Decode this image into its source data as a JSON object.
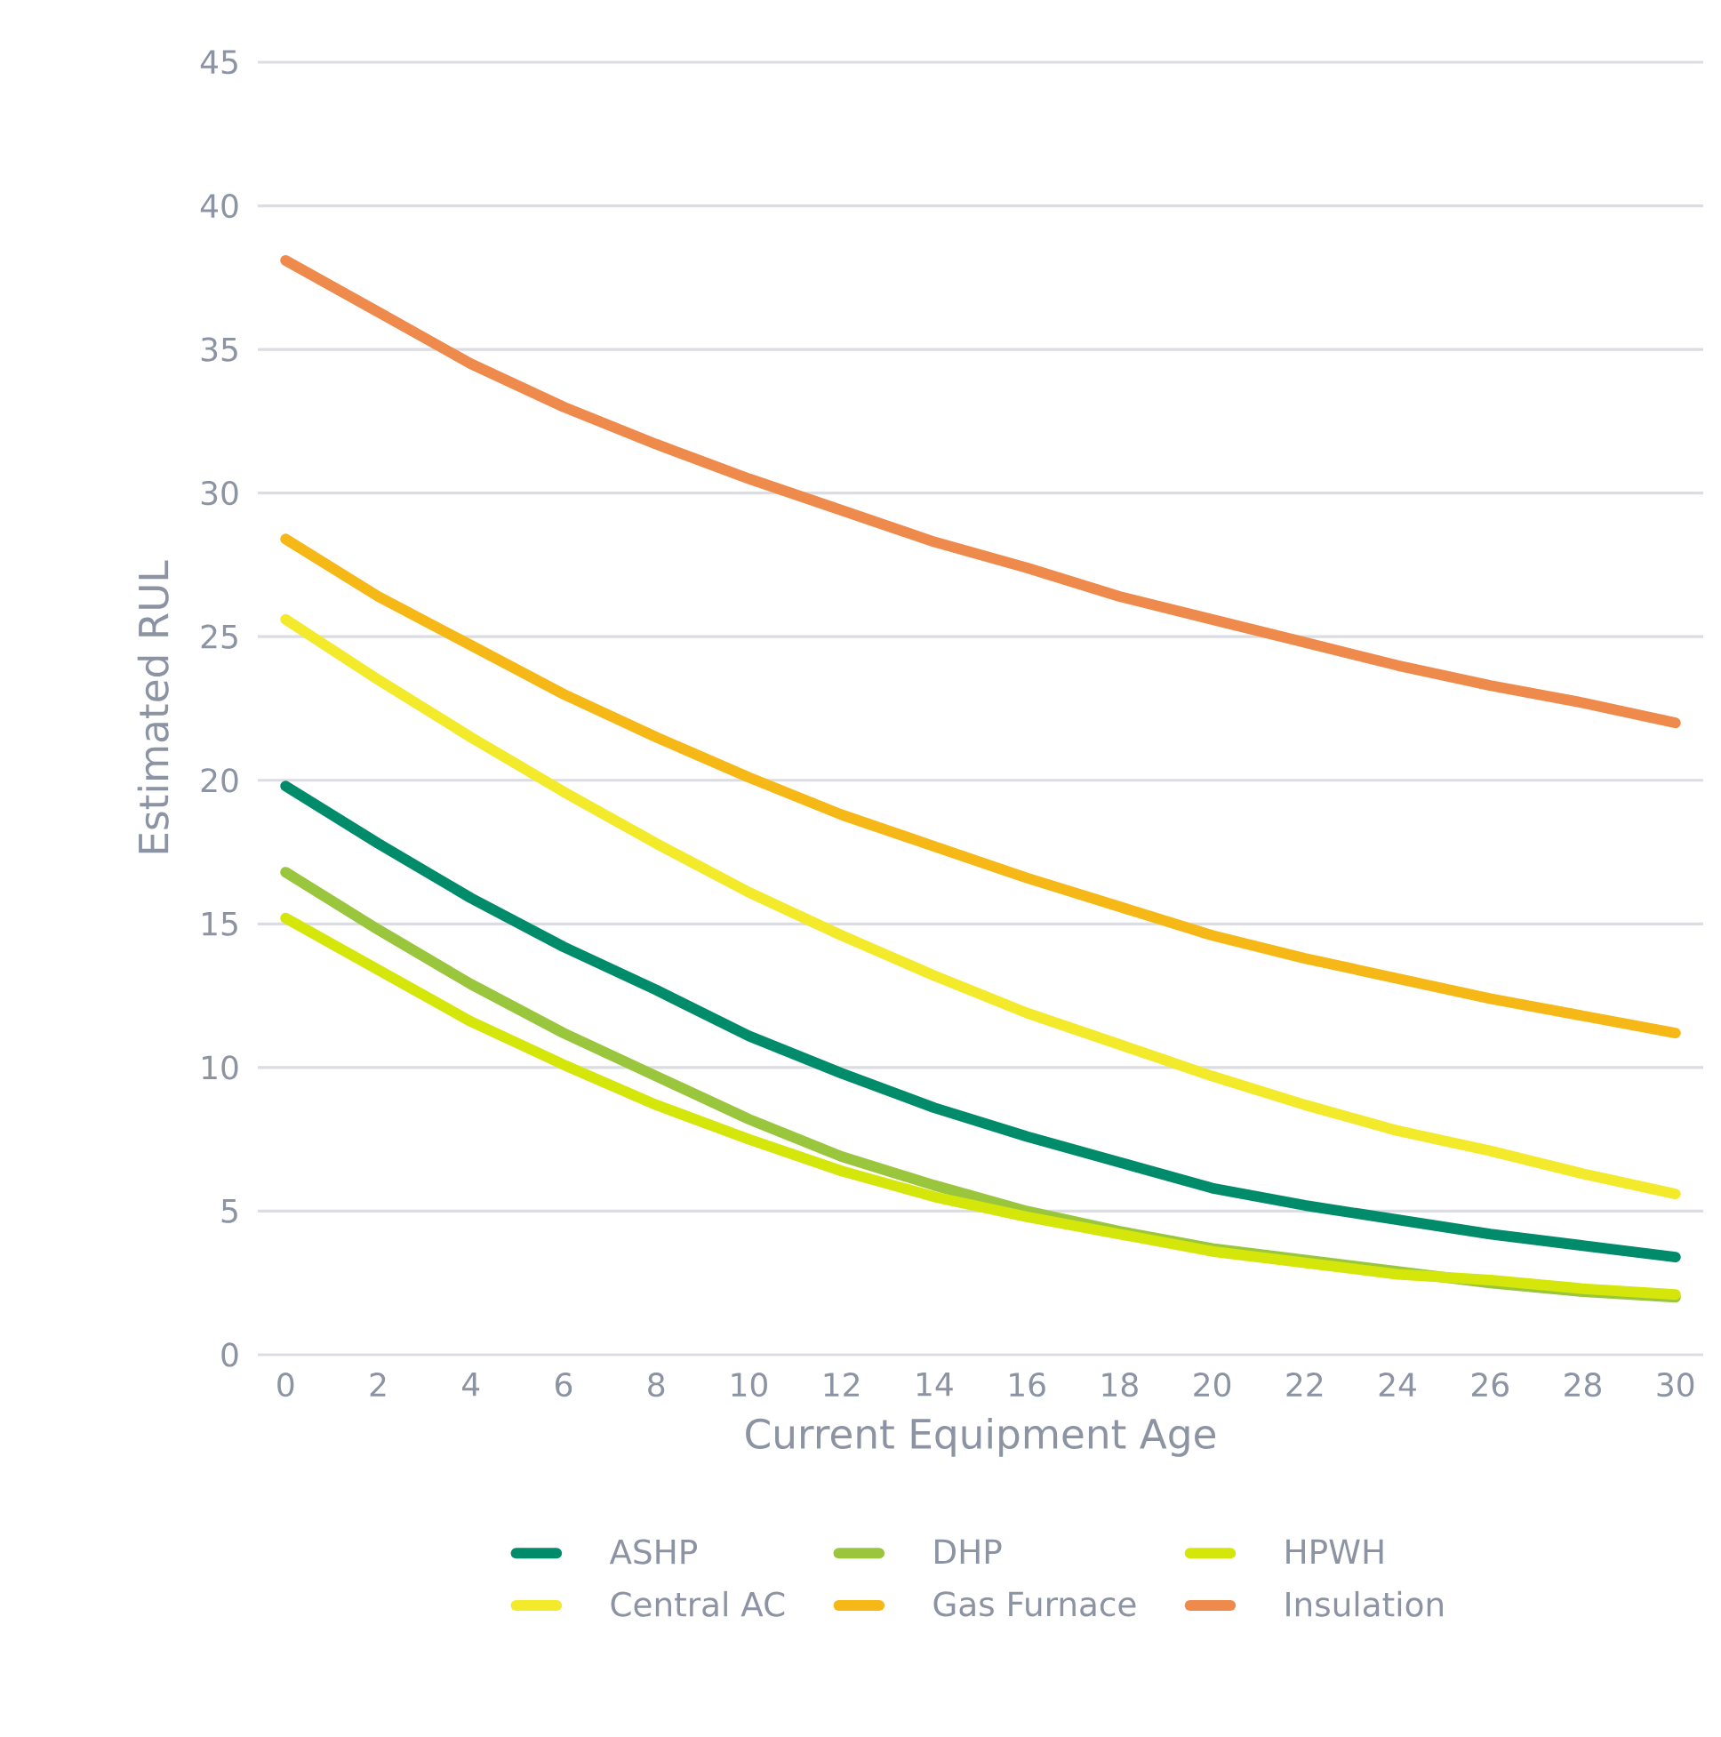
{
  "chart_data": {
    "type": "line",
    "xlabel": "Current Equipment Age",
    "ylabel": "Estimated RUL",
    "x": [
      0,
      2,
      4,
      6,
      8,
      10,
      12,
      14,
      16,
      18,
      20,
      22,
      24,
      26,
      28,
      30
    ],
    "xlim": [
      -0.6,
      30.6
    ],
    "xticks": [
      0,
      2,
      4,
      6,
      8,
      10,
      12,
      14,
      16,
      18,
      20,
      22,
      24,
      26,
      28,
      30
    ],
    "ylim": [
      0,
      45
    ],
    "yticks": [
      0,
      5,
      10,
      15,
      20,
      25,
      30,
      35,
      40,
      45
    ],
    "grid": "y",
    "legend": "bottom",
    "marker": "none",
    "line_style": "solid",
    "series": [
      {
        "name": "ASHP",
        "color": "#008c6a",
        "values": [
          19.8,
          17.8,
          15.9,
          14.2,
          12.7,
          11.1,
          9.8,
          8.6,
          7.6,
          6.7,
          5.8,
          5.2,
          4.7,
          4.2,
          3.8,
          3.4
        ]
      },
      {
        "name": "DHP",
        "color": "#99c63c",
        "values": [
          16.8,
          14.8,
          12.9,
          11.2,
          9.7,
          8.2,
          6.9,
          5.9,
          5.0,
          4.3,
          3.7,
          3.3,
          2.9,
          2.5,
          2.2,
          2.0
        ]
      },
      {
        "name": "HPWH",
        "color": "#d4e60a",
        "values": [
          15.2,
          13.4,
          11.6,
          10.1,
          8.7,
          7.5,
          6.4,
          5.5,
          4.8,
          4.2,
          3.6,
          3.2,
          2.8,
          2.6,
          2.3,
          2.1
        ]
      },
      {
        "name": "Central AC",
        "color": "#f2ea2a",
        "values": [
          25.6,
          23.5,
          21.5,
          19.6,
          17.8,
          16.1,
          14.6,
          13.2,
          11.9,
          10.8,
          9.7,
          8.7,
          7.8,
          7.1,
          6.3,
          5.6
        ]
      },
      {
        "name": "Gas Furnace",
        "color": "#f5b816",
        "values": [
          28.4,
          26.4,
          24.7,
          23.0,
          21.5,
          20.1,
          18.8,
          17.7,
          16.6,
          15.6,
          14.6,
          13.8,
          13.1,
          12.4,
          11.8,
          11.2
        ]
      },
      {
        "name": "Insulation",
        "color": "#ee8a4c",
        "values": [
          38.1,
          36.3,
          34.5,
          33.0,
          31.7,
          30.5,
          29.4,
          28.3,
          27.4,
          26.4,
          25.6,
          24.8,
          24.0,
          23.3,
          22.7,
          22.0
        ]
      }
    ]
  }
}
